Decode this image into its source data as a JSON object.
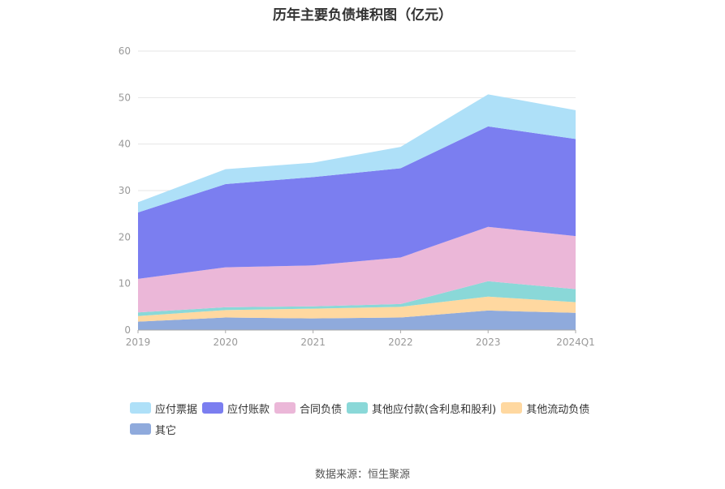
{
  "chart_data": {
    "type": "area",
    "title": "历年主要负债堆积图（亿元）",
    "categories": [
      "2019",
      "2020",
      "2021",
      "2022",
      "2023",
      "2024Q1"
    ],
    "ylim": [
      0,
      60
    ],
    "yticks": [
      0,
      10,
      20,
      30,
      40,
      50,
      60
    ],
    "grid": true,
    "legend_position": "bottom",
    "stacked": true,
    "series": [
      {
        "name": "其它",
        "color": "#8faadc",
        "values": [
          1.8,
          2.7,
          2.5,
          2.7,
          4.2,
          3.7
        ]
      },
      {
        "name": "其他流动负债",
        "color": "#ffd8a0",
        "values": [
          1.2,
          1.6,
          2.1,
          2.3,
          3.0,
          2.3
        ]
      },
      {
        "name": "其他应付款(含利息和股利)",
        "color": "#8ad8d8",
        "values": [
          0.8,
          0.6,
          0.5,
          0.6,
          3.3,
          2.8
        ]
      },
      {
        "name": "合同负债",
        "color": "#ebb7d8",
        "values": [
          7.2,
          8.6,
          8.8,
          10.0,
          11.7,
          11.4
        ]
      },
      {
        "name": "应付账款",
        "color": "#7b7ef0",
        "values": [
          14.3,
          17.9,
          19.0,
          19.2,
          21.6,
          20.9
        ]
      },
      {
        "name": "应付票据",
        "color": "#aee0f8",
        "values": [
          2.2,
          3.2,
          3.1,
          4.6,
          6.9,
          6.2
        ]
      }
    ],
    "legend_order": [
      "应付票据",
      "应付账款",
      "合同负债",
      "其他应付款(含利息和股利)",
      "其他流动负债",
      "其它"
    ]
  },
  "source_text": "数据来源：恒生聚源"
}
